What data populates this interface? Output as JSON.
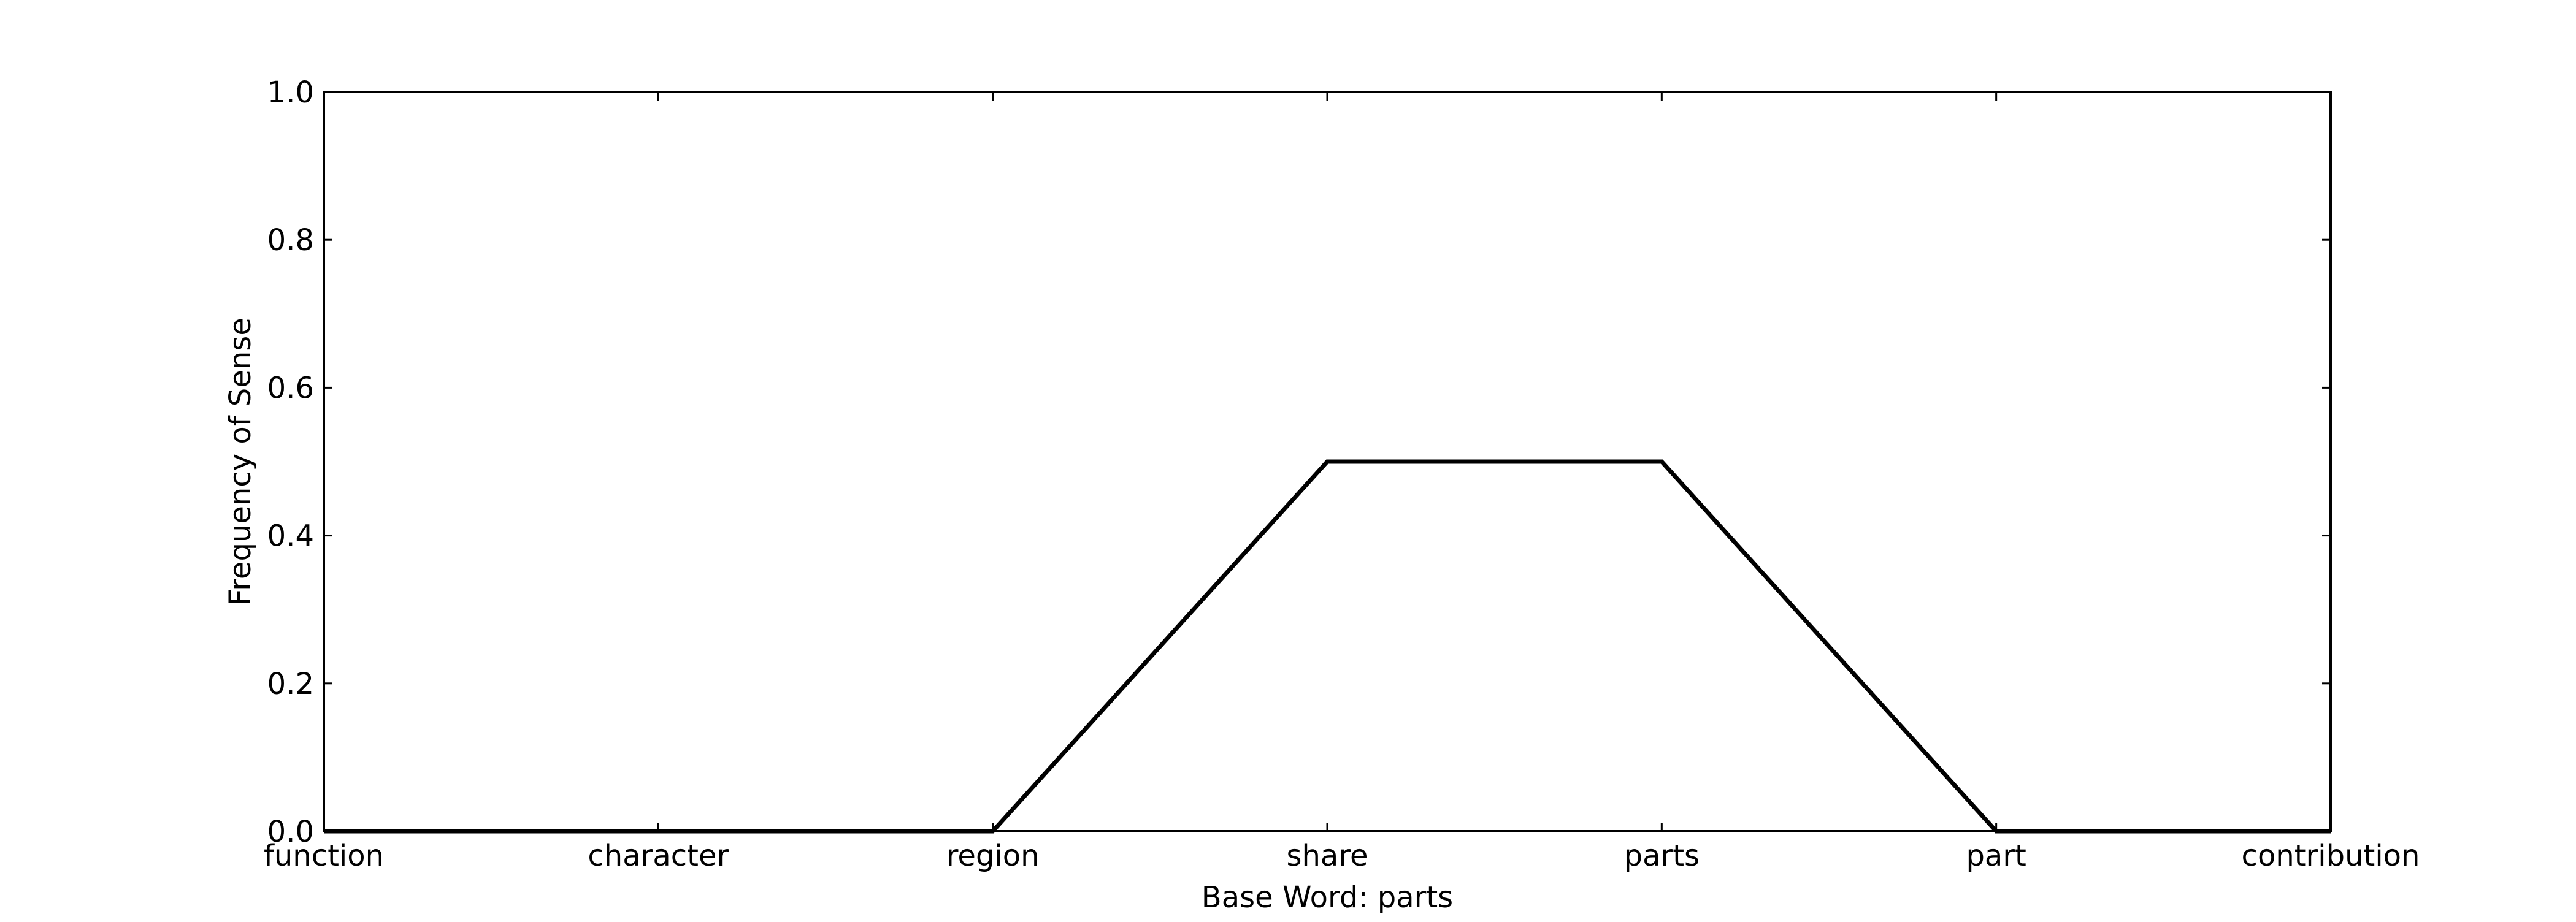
{
  "chart_data": {
    "type": "line",
    "title": "",
    "xlabel": "Base Word: parts",
    "ylabel": "Frequency of Sense",
    "categories": [
      "function",
      "character",
      "region",
      "share",
      "parts",
      "part",
      "contribution"
    ],
    "series": [
      {
        "values": [
          0.0,
          0.0,
          0.0,
          0.5,
          0.5,
          0.0,
          0.0
        ],
        "color": "#000000"
      }
    ],
    "ylim": [
      0.0,
      1.0
    ],
    "yticks": [
      "0.0",
      "0.2",
      "0.4",
      "0.6",
      "0.8",
      "1.0"
    ],
    "grid": false,
    "legend": "none"
  }
}
